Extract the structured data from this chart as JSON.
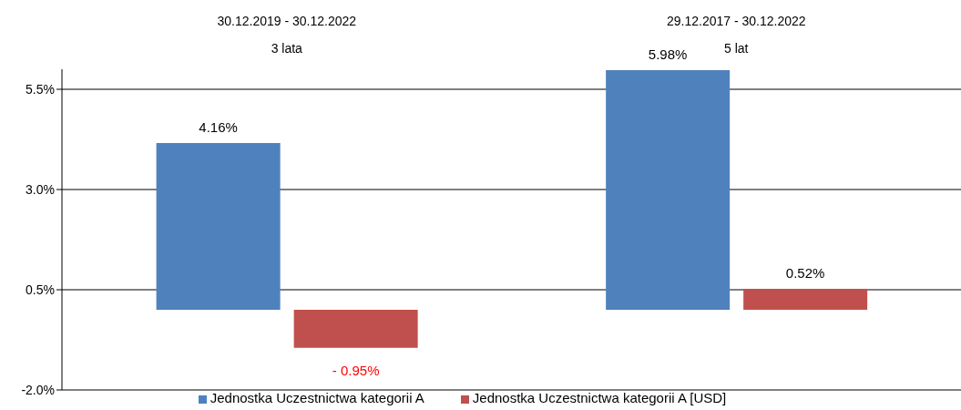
{
  "chart_data": {
    "type": "bar",
    "categories": [
      "30.12.2019 - 30.12.2022",
      "29.12.2017 - 30.12.2022"
    ],
    "series": [
      {
        "name": "Jednostka Uczestnictwa kategorii A",
        "color": "#4f81bd",
        "values": [
          4.16,
          5.98
        ],
        "value_labels": [
          "4.16%",
          "5.98%"
        ]
      },
      {
        "name": "Jednostka Uczestnictwa kategorii A [USD]",
        "color": "#c0504d",
        "values": [
          -0.95,
          0.52
        ],
        "value_labels": [
          "- 0.95%",
          "0.52%"
        ]
      }
    ],
    "ylim": [
      -2.0,
      6.0
    ],
    "yticks": [
      {
        "value": -2.0,
        "label": "-2.0%"
      },
      {
        "value": 0.5,
        "label": "0.5%"
      },
      {
        "value": 3.0,
        "label": "3.0%"
      },
      {
        "value": 5.5,
        "label": "5.5%"
      }
    ],
    "grid": "y",
    "legend": "bottom",
    "annotations": [
      "3 lata",
      "5 lat"
    ]
  }
}
